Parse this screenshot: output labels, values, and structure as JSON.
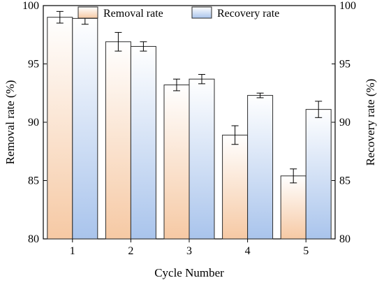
{
  "chart_data": {
    "type": "bar",
    "title": "",
    "xlabel": "Cycle Number",
    "ylabel_left": "Removal rate (%)",
    "ylabel_right": "Recovery rate (%)",
    "categories": [
      "1",
      "2",
      "3",
      "4",
      "5"
    ],
    "ylim": [
      80,
      100
    ],
    "yticks": [
      "80",
      "85",
      "90",
      "95",
      "100"
    ],
    "legend_position": "top-center",
    "grid": false,
    "series": [
      {
        "name": "Removal rate",
        "axis": "left",
        "values": [
          99.0,
          96.9,
          93.2,
          88.9,
          85.4
        ],
        "errors": [
          0.5,
          0.8,
          0.5,
          0.8,
          0.6
        ],
        "color_top": "#ffffff",
        "color_bottom": "#f6c9a4",
        "stroke": "#2b2b2b"
      },
      {
        "name": "Recovery rate",
        "axis": "right",
        "values": [
          98.9,
          96.5,
          93.7,
          92.3,
          91.1
        ],
        "errors": [
          0.5,
          0.4,
          0.4,
          0.2,
          0.7
        ],
        "color_top": "#ffffff",
        "color_bottom": "#a9c4ec",
        "stroke": "#2b2b2b"
      }
    ]
  }
}
